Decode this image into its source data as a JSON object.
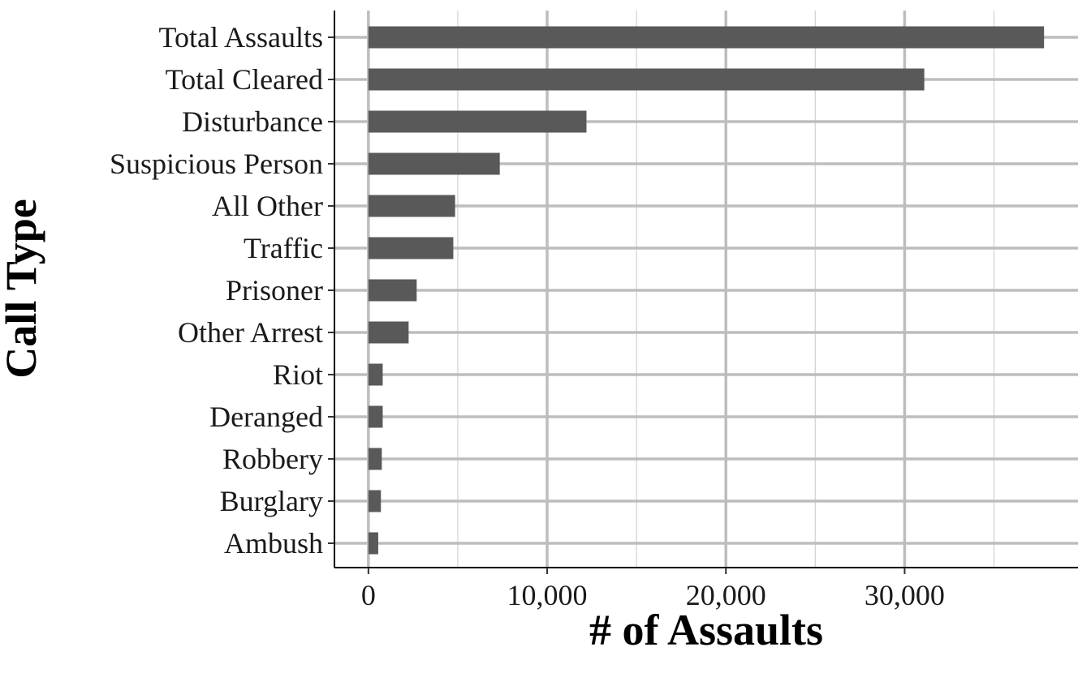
{
  "chart_data": {
    "type": "bar",
    "orientation": "horizontal",
    "categories": [
      "Total Assaults",
      "Total Cleared",
      "Disturbance",
      "Suspicious Person",
      "All Other",
      "Traffic",
      "Prisoner",
      "Other Arrest",
      "Riot",
      "Deranged",
      "Robbery",
      "Burglary",
      "Ambush"
    ],
    "values": [
      37800,
      31100,
      12200,
      7350,
      4850,
      4750,
      2700,
      2250,
      800,
      800,
      750,
      700,
      550
    ],
    "xlabel": "# of Assaults",
    "ylabel": "Call Type",
    "xlim": [
      -1900,
      39700
    ],
    "xticks": [
      0,
      10000,
      20000,
      30000
    ],
    "xtick_labels": [
      "0",
      "10,000",
      "20,000",
      "30,000"
    ],
    "grid": true,
    "bar_color": "#595959"
  }
}
